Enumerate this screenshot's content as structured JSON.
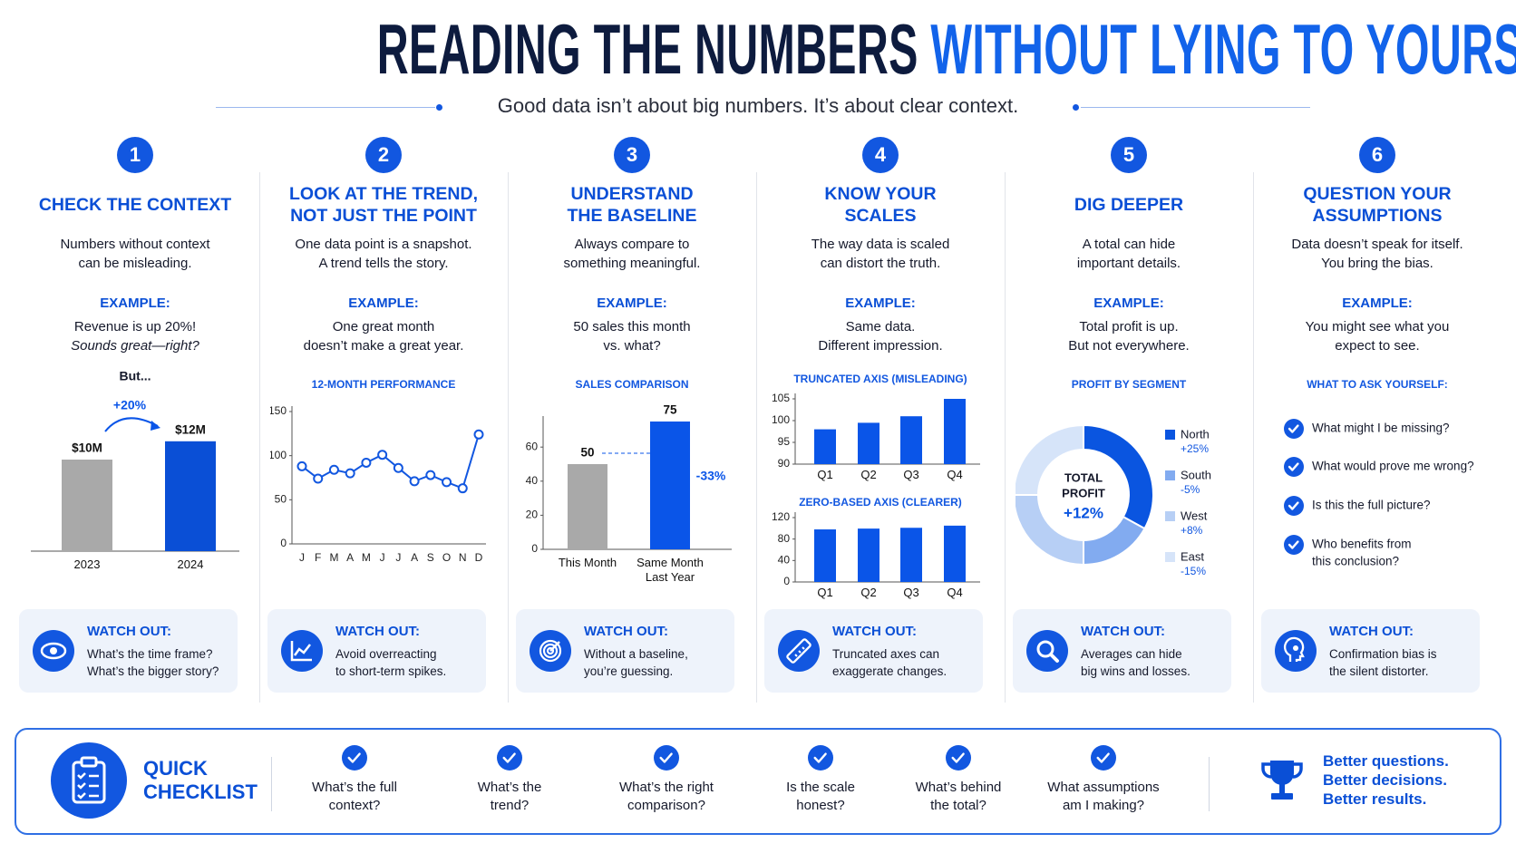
{
  "header": {
    "title_part1": "READING THE NUMBERS",
    "title_part2": "WITHOUT LYING TO YOURSELF",
    "subtitle": "Good data isn’t about big numbers. It’s about clear context."
  },
  "columns": [
    {
      "number": "1",
      "heading": [
        "CHECK THE CONTEXT"
      ],
      "description": [
        "Numbers without context",
        "can be misleading."
      ],
      "example_label": "EXAMPLE:",
      "example": [
        "Revenue is up 20%!",
        "Sounds great—right?"
      ],
      "charts": [
        {
          "type": "bar",
          "note": "But...",
          "categories": [
            "2023",
            "2024"
          ],
          "values": [
            10,
            12
          ],
          "value_labels": [
            "$10M",
            "$12M"
          ],
          "colors": [
            "#a9a9a9",
            "#0a4fd6"
          ],
          "annotation": "+20%"
        }
      ],
      "watch_out": {
        "label": "WATCH OUT:",
        "lines": [
          "What’s the time frame?",
          "What’s the bigger story?"
        ]
      }
    },
    {
      "number": "2",
      "heading": [
        "LOOK AT THE TREND,",
        "NOT JUST THE POINT"
      ],
      "description": [
        "One data point is a snapshot.",
        "A trend tells the story."
      ],
      "example_label": "EXAMPLE:",
      "example": [
        "One great month",
        "doesn’t make a great year."
      ],
      "charts": [
        {
          "type": "line",
          "title": "12-MONTH PERFORMANCE",
          "categories": [
            "J",
            "F",
            "M",
            "A",
            "M",
            "J",
            "J",
            "A",
            "S",
            "O",
            "N",
            "D"
          ],
          "values": [
            88,
            74,
            84,
            80,
            92,
            101,
            86,
            71,
            78,
            70,
            63,
            124
          ],
          "color": "#1257e0",
          "ylim": [
            0,
            150
          ],
          "yticks": [
            0,
            50,
            100,
            150
          ]
        }
      ],
      "watch_out": {
        "label": "WATCH OUT:",
        "lines": [
          "Avoid overreacting",
          "to short-term spikes."
        ]
      }
    },
    {
      "number": "3",
      "heading": [
        "UNDERSTAND",
        "THE BASELINE"
      ],
      "description": [
        "Always compare to",
        "something meaningful."
      ],
      "example_label": "EXAMPLE:",
      "example": [
        "50 sales this month",
        "vs. what?"
      ],
      "charts": [
        {
          "type": "bar",
          "title": "SALES COMPARISON",
          "categories": [
            "This Month",
            "Same Month Last Year"
          ],
          "values": [
            50,
            75
          ],
          "colors": [
            "#a9a9a9",
            "#0a55e8"
          ],
          "ylim": [
            0,
            75
          ],
          "yticks": [
            0,
            20,
            40,
            60
          ],
          "annotation": "-33%"
        }
      ],
      "watch_out": {
        "label": "WATCH OUT:",
        "lines": [
          "Without a baseline,",
          "you’re guessing."
        ]
      }
    },
    {
      "number": "4",
      "heading": [
        "KNOW YOUR",
        "SCALES"
      ],
      "description": [
        "The way data is scaled",
        "can distort the truth."
      ],
      "example_label": "EXAMPLE:",
      "example": [
        "Same data.",
        "Different impression."
      ],
      "charts": [
        {
          "type": "bar",
          "title": "TRUNCATED AXIS (MISLEADING)",
          "categories": [
            "Q1",
            "Q2",
            "Q3",
            "Q4"
          ],
          "values": [
            98,
            99.5,
            101,
            105
          ],
          "color": "#0a55e8",
          "ylim": [
            90,
            105
          ],
          "yticks": [
            90,
            95,
            100,
            105
          ]
        },
        {
          "type": "bar",
          "title": "ZERO-BASED AXIS (CLEARER)",
          "categories": [
            "Q1",
            "Q2",
            "Q3",
            "Q4"
          ],
          "values": [
            98,
            99.5,
            101,
            105
          ],
          "color": "#0a55e8",
          "ylim": [
            0,
            120
          ],
          "yticks": [
            0,
            40,
            80,
            120
          ]
        }
      ],
      "watch_out": {
        "label": "WATCH OUT:",
        "lines": [
          "Truncated axes can",
          "exaggerate changes."
        ]
      }
    },
    {
      "number": "5",
      "heading": [
        "DIG DEEPER"
      ],
      "description": [
        "A total can hide",
        "important details."
      ],
      "example_label": "EXAMPLE:",
      "example": [
        "Total profit is up.",
        "But not everywhere."
      ],
      "charts": [
        {
          "type": "pie",
          "title": "PROFIT BY SEGMENT",
          "categories": [
            "North",
            "South",
            "West",
            "East"
          ],
          "values": [
            33,
            17,
            25,
            25
          ],
          "changes": [
            "+25%",
            "-5%",
            "+8%",
            "-15%"
          ],
          "colors": [
            "#0a55e0",
            "#82abf0",
            "#b7cff5",
            "#d6e4f9"
          ],
          "center_label": [
            "TOTAL",
            "PROFIT"
          ],
          "center_value": "+12%"
        }
      ],
      "watch_out": {
        "label": "WATCH OUT:",
        "lines": [
          "Averages can hide",
          "big wins and losses."
        ]
      }
    },
    {
      "number": "6",
      "heading": [
        "QUESTION YOUR",
        "ASSUMPTIONS"
      ],
      "description": [
        "Data doesn’t speak for itself.",
        "You bring the bias."
      ],
      "example_label": "EXAMPLE:",
      "example": [
        "You might see what you",
        "expect to see."
      ],
      "charts": [
        {
          "type": "checklist",
          "title": "WHAT TO ASK YOURSELF:",
          "items": [
            [
              "What might I be missing?"
            ],
            [
              "What would prove me wrong?"
            ],
            [
              "Is this the full picture?"
            ],
            [
              "Who benefits from",
              "this conclusion?"
            ]
          ]
        }
      ],
      "watch_out": {
        "label": "WATCH OUT:",
        "lines": [
          "Confirmation bias is",
          "the silent distorter."
        ]
      }
    }
  ],
  "checklist": {
    "title": [
      "QUICK",
      "CHECKLIST"
    ],
    "items": [
      [
        "What’s the full",
        "context?"
      ],
      [
        "What’s the",
        "trend?"
      ],
      [
        "What’s the right",
        "comparison?"
      ],
      [
        "Is the scale",
        "honest?"
      ],
      [
        "What’s behind",
        "the total?"
      ],
      [
        "What assumptions",
        "am I making?"
      ]
    ],
    "closing": [
      "Better questions.",
      "Better decisions.",
      "Better results."
    ]
  }
}
